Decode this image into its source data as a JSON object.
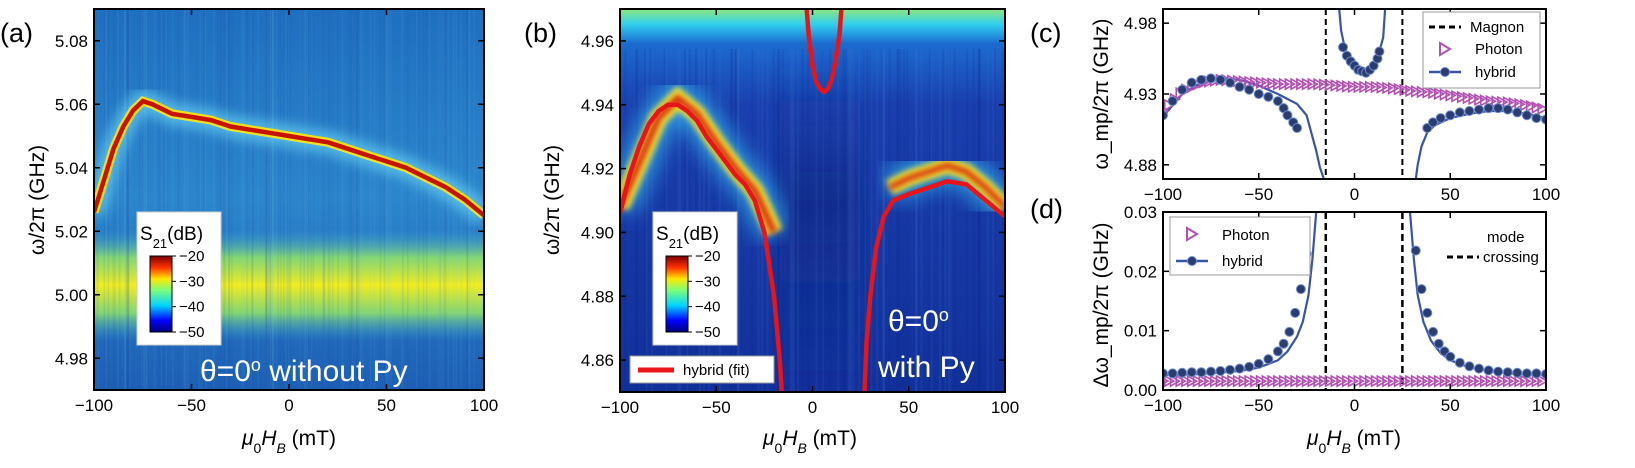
{
  "panels": {
    "a": {
      "label": "(a)"
    },
    "b": {
      "label": "(b)"
    },
    "c": {
      "label": "(c)"
    },
    "d": {
      "label": "(d)"
    }
  },
  "chart_data": [
    {
      "id": "a",
      "type": "heatmap",
      "title": "",
      "xlabel": "μ₀H_B (mT)",
      "xlabel_main": "μ",
      "xlabel_sub1": "0",
      "xlabel_h": "H",
      "xlabel_sub2": "B",
      "xlabel_unit": " (mT)",
      "ylabel": "ω/2π (GHz)",
      "xlim": [
        -100,
        100
      ],
      "ylim": [
        4.97,
        5.09
      ],
      "xticks": [
        -100,
        -50,
        0,
        50,
        100
      ],
      "yticks": [
        4.98,
        5.0,
        5.02,
        5.04,
        5.06,
        5.08
      ],
      "colorbar": {
        "label_main": "S",
        "label_sub": "21",
        "label_unit": "(dB)",
        "range": [
          -50,
          -20
        ],
        "ticks": [
          -20,
          -30,
          -40,
          -50
        ]
      },
      "annotation": "θ=0° without Py",
      "annotation_theta": "θ=0",
      "annotation_deg": "o",
      "annotation_rest": " without Py",
      "resonance_band": {
        "x": [
          -100,
          -95,
          -90,
          -85,
          -80,
          -75,
          -70,
          -60,
          -50,
          -40,
          -30,
          -20,
          -10,
          0,
          10,
          20,
          30,
          40,
          50,
          60,
          70,
          80,
          90,
          100
        ],
        "y": [
          5.026,
          5.036,
          5.046,
          5.053,
          5.058,
          5.061,
          5.06,
          5.057,
          5.056,
          5.055,
          5.053,
          5.052,
          5.051,
          5.05,
          5.049,
          5.048,
          5.046,
          5.044,
          5.042,
          5.04,
          5.037,
          5.034,
          5.03,
          5.025
        ]
      },
      "uniform_band": {
        "y_center": 5.003,
        "y_halfwidth": 0.008
      }
    },
    {
      "id": "b",
      "type": "heatmap",
      "xlabel": "μ₀H_B (mT)",
      "xlabel_main": "μ",
      "xlabel_sub1": "0",
      "xlabel_h": "H",
      "xlabel_sub2": "B",
      "xlabel_unit": " (mT)",
      "ylabel": "ω/2π (GHz)",
      "xlim": [
        -100,
        100
      ],
      "ylim": [
        4.85,
        4.97
      ],
      "xticks": [
        -100,
        -50,
        0,
        50,
        100
      ],
      "yticks": [
        4.86,
        4.88,
        4.9,
        4.92,
        4.94,
        4.96
      ],
      "colorbar": {
        "label_main": "S",
        "label_sub": "21",
        "label_unit": "(dB)",
        "range": [
          -50,
          -20
        ],
        "ticks": [
          -20,
          -30,
          -40,
          -50
        ]
      },
      "legend": [
        "hybrid (fit)"
      ],
      "annotation_line1": "θ=0",
      "annotation_deg": "o",
      "annotation_line2": "with Py",
      "hybrid_fit": [
        {
          "x": [
            -100,
            -95,
            -90,
            -85,
            -80,
            -75,
            -70,
            -65,
            -60,
            -55,
            -50,
            -45,
            -40,
            -35,
            -30,
            -25,
            -20,
            -17,
            -16
          ],
          "y": [
            4.906,
            4.918,
            4.927,
            4.934,
            4.938,
            4.94,
            4.94,
            4.938,
            4.935,
            4.93,
            4.926,
            4.922,
            4.918,
            4.915,
            4.91,
            4.9,
            4.88,
            4.86,
            4.85
          ]
        },
        {
          "x": [
            -3,
            -2,
            0,
            2,
            4,
            6,
            8,
            10,
            12,
            14,
            15
          ],
          "y": [
            4.97,
            4.962,
            4.952,
            4.947,
            4.945,
            4.944,
            4.945,
            4.948,
            4.954,
            4.962,
            4.97
          ]
        },
        {
          "x": [
            27,
            28,
            30,
            33,
            37,
            42,
            50,
            60,
            70,
            80,
            90,
            100
          ],
          "y": [
            4.85,
            4.865,
            4.88,
            4.895,
            4.905,
            4.91,
            4.912,
            4.914,
            4.916,
            4.915,
            4.91,
            4.905
          ]
        }
      ],
      "features": {
        "upper_branch": {
          "x": [
            -100,
            -90,
            -80,
            -70,
            -60,
            -50,
            -40,
            -30,
            -20
          ],
          "y": [
            4.908,
            4.922,
            4.936,
            4.942,
            4.937,
            4.928,
            4.92,
            4.913,
            4.9
          ]
        },
        "right_branch": {
          "x": [
            40,
            50,
            60,
            70,
            80,
            90,
            100
          ],
          "y": [
            4.914,
            4.917,
            4.919,
            4.921,
            4.919,
            4.914,
            4.908
          ]
        }
      }
    },
    {
      "id": "c",
      "type": "line",
      "xlabel": "",
      "ylabel": "ω_mp/2π (GHz)",
      "xlim": [
        -100,
        100
      ],
      "ylim": [
        4.87,
        4.99
      ],
      "xticks": [
        -100,
        -50,
        0,
        50,
        100
      ],
      "yticks": [
        4.88,
        4.93,
        4.98
      ],
      "legend": [
        "Magnon",
        "Photon",
        "hybrid"
      ],
      "magnon_lines_x": [
        -15,
        25
      ],
      "photon": {
        "x": [
          -100,
          -90,
          -80,
          -70,
          -60,
          -50,
          -40,
          -30,
          -20,
          -10,
          0,
          10,
          20,
          30,
          40,
          50,
          60,
          70,
          80,
          90,
          100
        ],
        "y": [
          4.918,
          4.932,
          4.938,
          4.94,
          4.939,
          4.938,
          4.937,
          4.937,
          4.937,
          4.936,
          4.935,
          4.935,
          4.934,
          4.932,
          4.931,
          4.929,
          4.927,
          4.925,
          4.924,
          4.922,
          4.919
        ]
      },
      "hybrid_points": [
        {
          "x": [
            -100,
            -95,
            -90,
            -85,
            -80,
            -75,
            -70,
            -65,
            -60,
            -55,
            -50,
            -45,
            -40,
            -37,
            -35,
            -32,
            -30
          ],
          "y": [
            4.915,
            4.925,
            4.933,
            4.938,
            4.94,
            4.941,
            4.94,
            4.938,
            4.935,
            4.933,
            4.93,
            4.928,
            4.925,
            4.92,
            4.915,
            4.91,
            4.906
          ]
        },
        {
          "x": [
            -6,
            -4,
            -2,
            0,
            2,
            4,
            6,
            8,
            10,
            12,
            13
          ],
          "y": [
            4.963,
            4.957,
            4.953,
            4.95,
            4.947,
            4.946,
            4.945,
            4.947,
            4.95,
            4.955,
            4.96
          ]
        },
        {
          "x": [
            38,
            41,
            45,
            50,
            55,
            60,
            65,
            70,
            75,
            80,
            85,
            90,
            95,
            100
          ],
          "y": [
            4.906,
            4.91,
            4.913,
            4.915,
            4.917,
            4.918,
            4.919,
            4.92,
            4.92,
            4.919,
            4.917,
            4.915,
            4.913,
            4.912
          ]
        }
      ],
      "hybrid_fit": [
        {
          "x": [
            -100,
            -90,
            -80,
            -70,
            -60,
            -50,
            -40,
            -30,
            -25,
            -20,
            -18,
            -16
          ],
          "y": [
            4.914,
            4.93,
            4.938,
            4.941,
            4.94,
            4.936,
            4.93,
            4.923,
            4.915,
            4.89,
            4.878,
            4.87
          ]
        },
        {
          "x": [
            -8,
            -7,
            -5,
            -2,
            0,
            3,
            6,
            9,
            12,
            15,
            16
          ],
          "y": [
            4.99,
            4.975,
            4.962,
            4.954,
            4.95,
            4.946,
            4.945,
            4.947,
            4.955,
            4.97,
            4.99
          ]
        },
        {
          "x": [
            32,
            33,
            35,
            38,
            42,
            50,
            60,
            70,
            80,
            90,
            100
          ],
          "y": [
            4.87,
            4.88,
            4.893,
            4.903,
            4.908,
            4.913,
            4.916,
            4.918,
            4.918,
            4.916,
            4.913
          ]
        }
      ]
    },
    {
      "id": "d",
      "type": "line",
      "xlabel": "μ₀H_B (mT)",
      "xlabel_main": "μ",
      "xlabel_sub1": "0",
      "xlabel_h": "H",
      "xlabel_sub2": "B",
      "xlabel_unit": " (mT)",
      "ylabel": "Δω_mp/2π (GHz)",
      "xlim": [
        -100,
        100
      ],
      "ylim": [
        0.0,
        0.03
      ],
      "xticks": [
        -100,
        -50,
        0,
        50,
        100
      ],
      "yticks": [
        0.0,
        0.01,
        0.02,
        0.03
      ],
      "yticklabels": [
        "0.00",
        "0.01",
        "0.02",
        "0.03"
      ],
      "legend": [
        "Photon",
        "hybrid"
      ],
      "legend2_line1": "mode",
      "legend2_line2": "crossing",
      "mode_crossing_x": [
        -15,
        25
      ],
      "photon": {
        "y": 0.0015
      },
      "hybrid_points": [
        {
          "x": [
            -100,
            -95,
            -90,
            -85,
            -80,
            -75,
            -70,
            -65,
            -60,
            -55,
            -50,
            -45,
            -40,
            -37,
            -34,
            -31,
            -28,
            -25
          ],
          "y": [
            0.0028,
            0.0028,
            0.0029,
            0.003,
            0.003,
            0.0031,
            0.0032,
            0.0034,
            0.0036,
            0.0039,
            0.0044,
            0.0052,
            0.0065,
            0.0078,
            0.0098,
            0.013,
            0.017,
            0.023
          ]
        },
        {
          "x": [
            32,
            35,
            38,
            41,
            44,
            47,
            50,
            55,
            60,
            65,
            70,
            75,
            80,
            85,
            90,
            95,
            100
          ],
          "y": [
            0.0235,
            0.017,
            0.013,
            0.0098,
            0.0078,
            0.0065,
            0.0056,
            0.0046,
            0.004,
            0.0036,
            0.0033,
            0.0031,
            0.003,
            0.0029,
            0.0028,
            0.0028,
            0.0027
          ]
        }
      ],
      "hybrid_fit": [
        {
          "x": [
            -100,
            -80,
            -60,
            -50,
            -40,
            -35,
            -30,
            -27,
            -24,
            -22,
            -20
          ],
          "y": [
            0.0025,
            0.0027,
            0.0032,
            0.0038,
            0.005,
            0.0065,
            0.009,
            0.0115,
            0.016,
            0.022,
            0.03
          ]
        },
        {
          "x": [
            29,
            31,
            33,
            36,
            40,
            45,
            50,
            60,
            70,
            80,
            100
          ],
          "y": [
            0.03,
            0.022,
            0.016,
            0.0115,
            0.0083,
            0.0062,
            0.005,
            0.0038,
            0.0032,
            0.0028,
            0.0025
          ]
        }
      ]
    }
  ]
}
